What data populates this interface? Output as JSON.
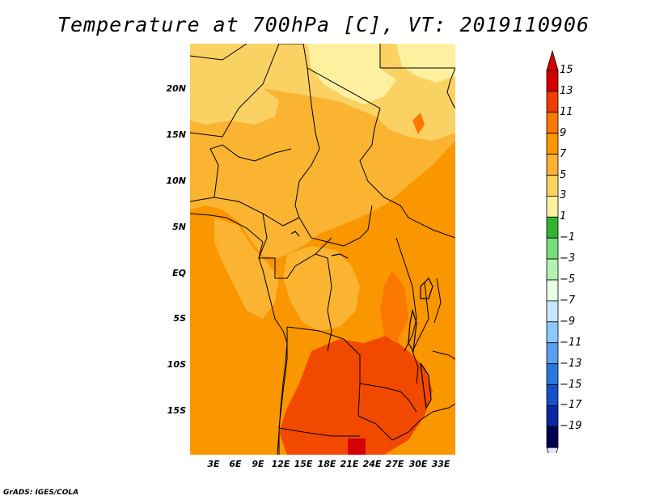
{
  "title": "Temperature at 700hPa [C], VT: 2019110906",
  "footer": "GrADS: IGES/COLA",
  "map": {
    "variable": "Temperature at 700hPa",
    "units": "C",
    "valid_time": "2019110906",
    "lon_range": [
      0,
      36
    ],
    "lat_range": [
      -20,
      24
    ],
    "y_axis_labels": [
      "20N",
      "15N",
      "10N",
      "5N",
      "EQ",
      "5S",
      "10S",
      "15S"
    ],
    "x_axis_labels": [
      "3E",
      "6E",
      "9E",
      "12E",
      "15E",
      "18E",
      "21E",
      "24E",
      "27E",
      "30E",
      "33E"
    ]
  },
  "colorbar": {
    "labels": [
      "15",
      "13",
      "11",
      "9",
      "7",
      "5",
      "3",
      "1",
      "−1",
      "−3",
      "−5",
      "−7",
      "−9",
      "−11",
      "−13",
      "−15",
      "−17",
      "−19"
    ],
    "colors": [
      "#d40000",
      "#f03c00",
      "#fa7800",
      "#fa9600",
      "#fab432",
      "#fad264",
      "#fff0a0",
      "#32b432",
      "#78dc78",
      "#b4f0b4",
      "#e6ffe6",
      "#c8e6ff",
      "#8cc8ff",
      "#5aa0f0",
      "#2878dc",
      "#1450c8",
      "#0a28a0",
      "#000050"
    ],
    "top_arrow_color": "#d40000",
    "bottom_arrow_color": "#e6e6ff"
  }
}
